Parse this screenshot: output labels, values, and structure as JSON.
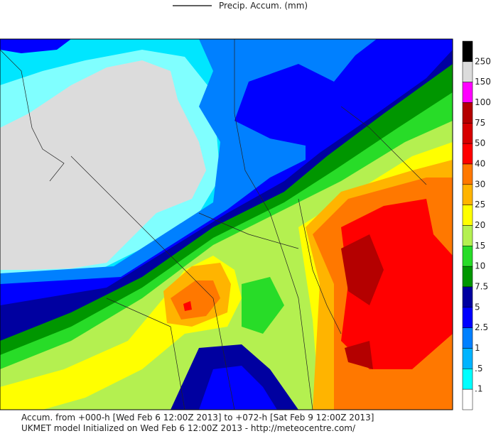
{
  "legend": {
    "title": "Precip. Accum. (mm)"
  },
  "colorbar": {
    "labels": [
      "250",
      "150",
      "100",
      "75",
      "50",
      "40",
      "30",
      "25",
      "20",
      "15",
      "10",
      "7.5",
      "5",
      "2.5",
      "1",
      ".5",
      ".1"
    ],
    "colors": [
      "#000000",
      "#dcdcdc",
      "#ff00ff",
      "#b40000",
      "#d70000",
      "#ff0000",
      "#ff7800",
      "#ffb400",
      "#ffff00",
      "#b4f050",
      "#28dc28",
      "#009600",
      "#0000a0",
      "#0000ff",
      "#0080ff",
      "#00b4ff",
      "#00ffff",
      "#ffffff"
    ]
  },
  "footer": {
    "line1": "Accum. from +000-h [Wed Feb 6 12:00Z 2013] to +072-h [Sat Feb 9 12:00Z 2013]",
    "line2": "UKMET model Initialized on Wed Feb 6 12:00Z 2013 - http://meteocentre.com/"
  }
}
